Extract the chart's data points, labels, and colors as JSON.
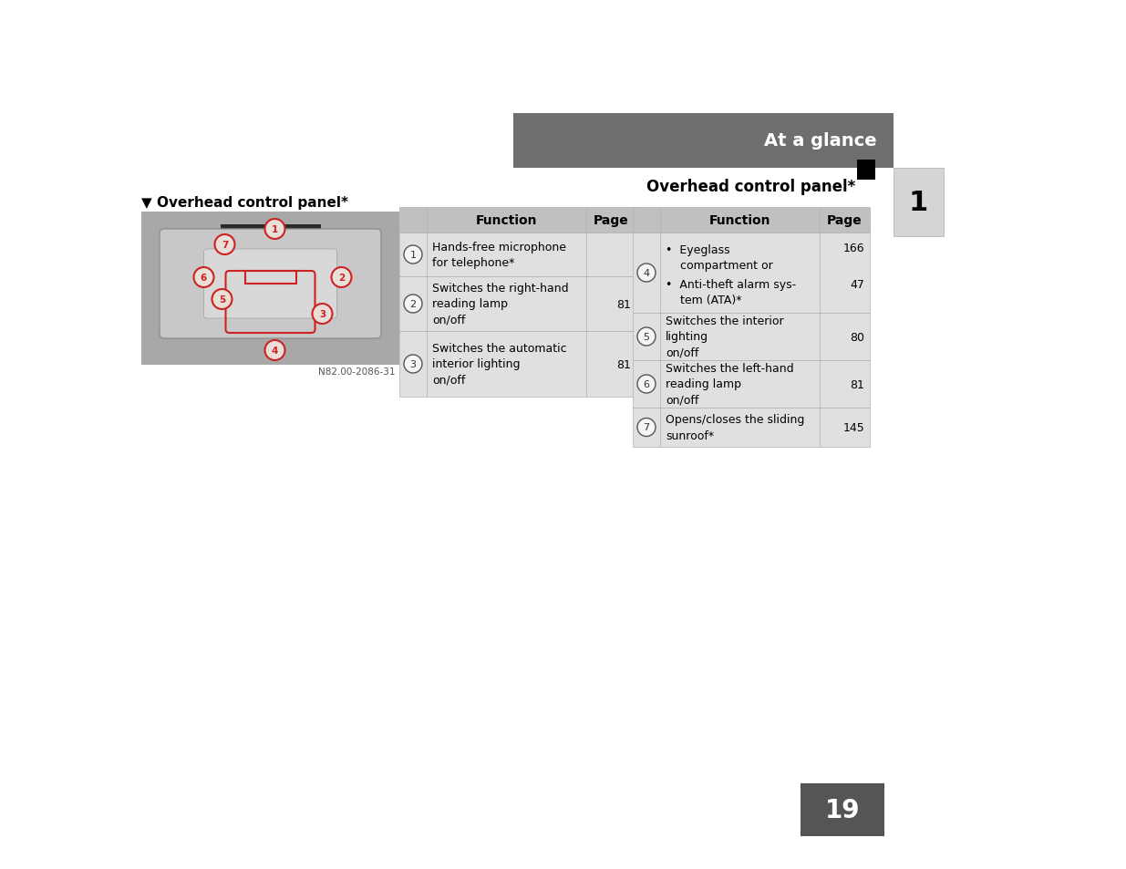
{
  "page_bg": "#ffffff",
  "header_bg": "#6e6e6e",
  "header_text": "At a glance",
  "header_text_color": "#ffffff",
  "subheader_text": "Overhead control panel*",
  "subheader_text_color": "#000000",
  "section_title": "▼ Overhead control panel*",
  "page_number": "19",
  "chapter_number": "1",
  "table_header_bg": "#c0c0c0",
  "table_row_bg": "#e0e0e0",
  "table_row_bg2": "#ebebeb",
  "image_caption": "N82.00-2086-31",
  "left_table_rows": [
    {
      "num": "1",
      "function": "Hands-free microphone\nfor telephone*",
      "page": ""
    },
    {
      "num": "2",
      "function": "Switches the right-hand\nreading lamp\non/off",
      "page": "81"
    },
    {
      "num": "3",
      "function": "Switches the automatic\ninterior lighting\non/off",
      "page": "81"
    }
  ],
  "right_table_rows": [
    {
      "num": "4",
      "func1": "•  Eyeglass\n    compartment or",
      "page1": "166",
      "func2": "•  Anti-theft alarm sys-\n    tem (ATA)*",
      "page2": "47"
    },
    {
      "num": "5",
      "function": "Switches the interior\nlighting\non/off",
      "page": "80"
    },
    {
      "num": "6",
      "function": "Switches the left-hand\nreading lamp\non/off",
      "page": "81"
    },
    {
      "num": "7",
      "function": "Opens/closes the sliding\nsunroof*",
      "page": "145"
    }
  ]
}
